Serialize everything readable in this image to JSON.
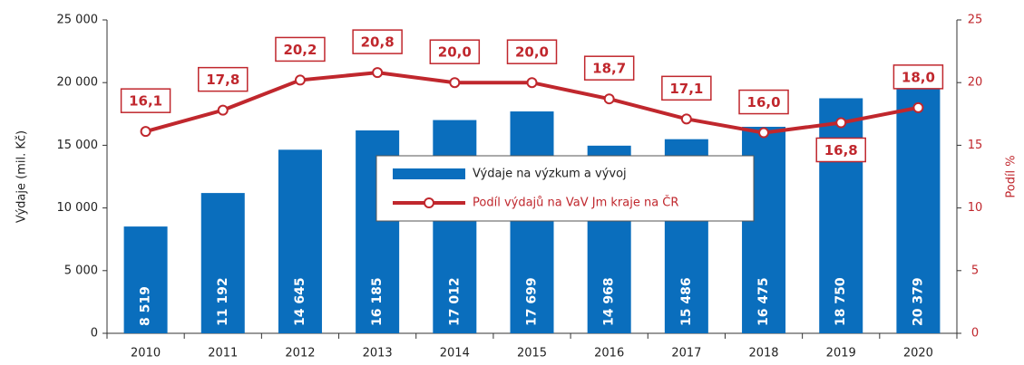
{
  "chart_data": {
    "type": "bar",
    "categories": [
      "2010",
      "2011",
      "2012",
      "2013",
      "2014",
      "2015",
      "2016",
      "2017",
      "2018",
      "2019",
      "2020"
    ],
    "y_label": "Výdaje (mil. Kč)",
    "y2_label": "Podíl %",
    "series": [
      {
        "name": "Výdaje  na výzkum a vývoj",
        "type": "bar",
        "color": "#0a6ebd",
        "values": [
          8519,
          11192,
          14645,
          16185,
          17012,
          17699,
          14968,
          15486,
          16475,
          18750,
          20379
        ],
        "value_labels": [
          "8 519",
          "11 192",
          "14 645",
          "16 185",
          "17 012",
          "17 699",
          "14 968",
          "15 486",
          "16 475",
          "18 750",
          "20 379"
        ]
      },
      {
        "name": "Podíl výdajů na VaV Jm kraje na ČR",
        "type": "line",
        "axis": "y2",
        "color": "#c0272d",
        "values": [
          16.1,
          17.8,
          20.2,
          20.8,
          20.0,
          20.0,
          18.7,
          17.1,
          16.0,
          16.8,
          18.0
        ],
        "value_labels": [
          "16,1",
          "17,8",
          "20,2",
          "20,8",
          "20,0",
          "20,0",
          "18,7",
          "17,1",
          "16,0",
          "16,8",
          "18,0"
        ]
      }
    ],
    "ylim": [
      0,
      25000
    ],
    "yticks": [
      0,
      {
        "value": 5000,
        "label": "5 000"
      },
      {
        "value": 10000,
        "label": "10 000"
      },
      {
        "value": 15000,
        "label": "15 000"
      },
      {
        "value": 20000,
        "label": "20 000"
      },
      {
        "value": 25000,
        "label": "25 000"
      }
    ],
    "y2lim": [
      0,
      25
    ],
    "y2ticks": [
      0,
      5,
      10,
      15,
      20,
      25
    ],
    "grid": false,
    "legend": "center"
  }
}
